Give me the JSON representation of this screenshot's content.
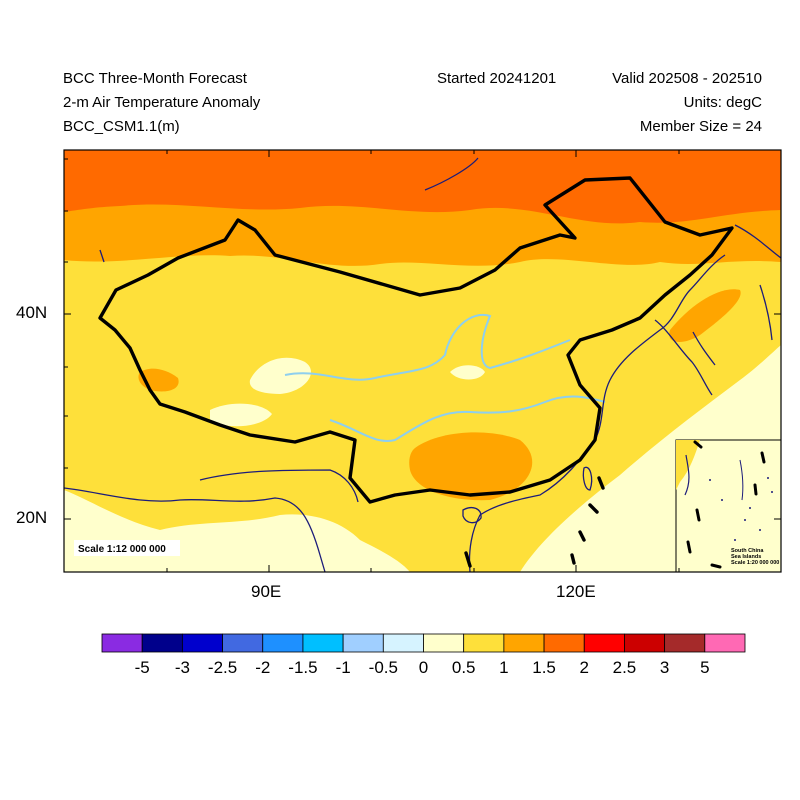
{
  "header": {
    "title": "BCC Three-Month Forecast",
    "variable": "2-m Air Temperature Anomaly",
    "model": "BCC_CSM1.1(m)",
    "started": "Started 20241201",
    "valid": "Valid 202508 - 202510",
    "units": "Units: degC",
    "members": "Member Size = 24"
  },
  "axes": {
    "lat_labels": [
      "40N",
      "20N"
    ],
    "lon_labels": [
      "90E",
      "120E"
    ]
  },
  "map": {
    "scale_text": "Scale 1:12 000 000",
    "inset_lines": [
      "South China",
      "Sea Islands",
      "Scale 1:20 000 000"
    ]
  },
  "colorbar": {
    "labels": [
      "-5",
      "-3",
      "-2.5",
      "-2",
      "-1.5",
      "-1",
      "-0.5",
      "0",
      "0.5",
      "1",
      "1.5",
      "2",
      "2.5",
      "3",
      "5"
    ],
    "colors": [
      "#8a2be2",
      "#00008b",
      "#0000cd",
      "#4169e1",
      "#1e90ff",
      "#00bfff",
      "#a0cfff",
      "#d6f3ff",
      "#ffffcc",
      "#fee03a",
      "#ffa500",
      "#ff6a00",
      "#ff0000",
      "#cc0000",
      "#a52a2a",
      "#ff69b4"
    ]
  }
}
